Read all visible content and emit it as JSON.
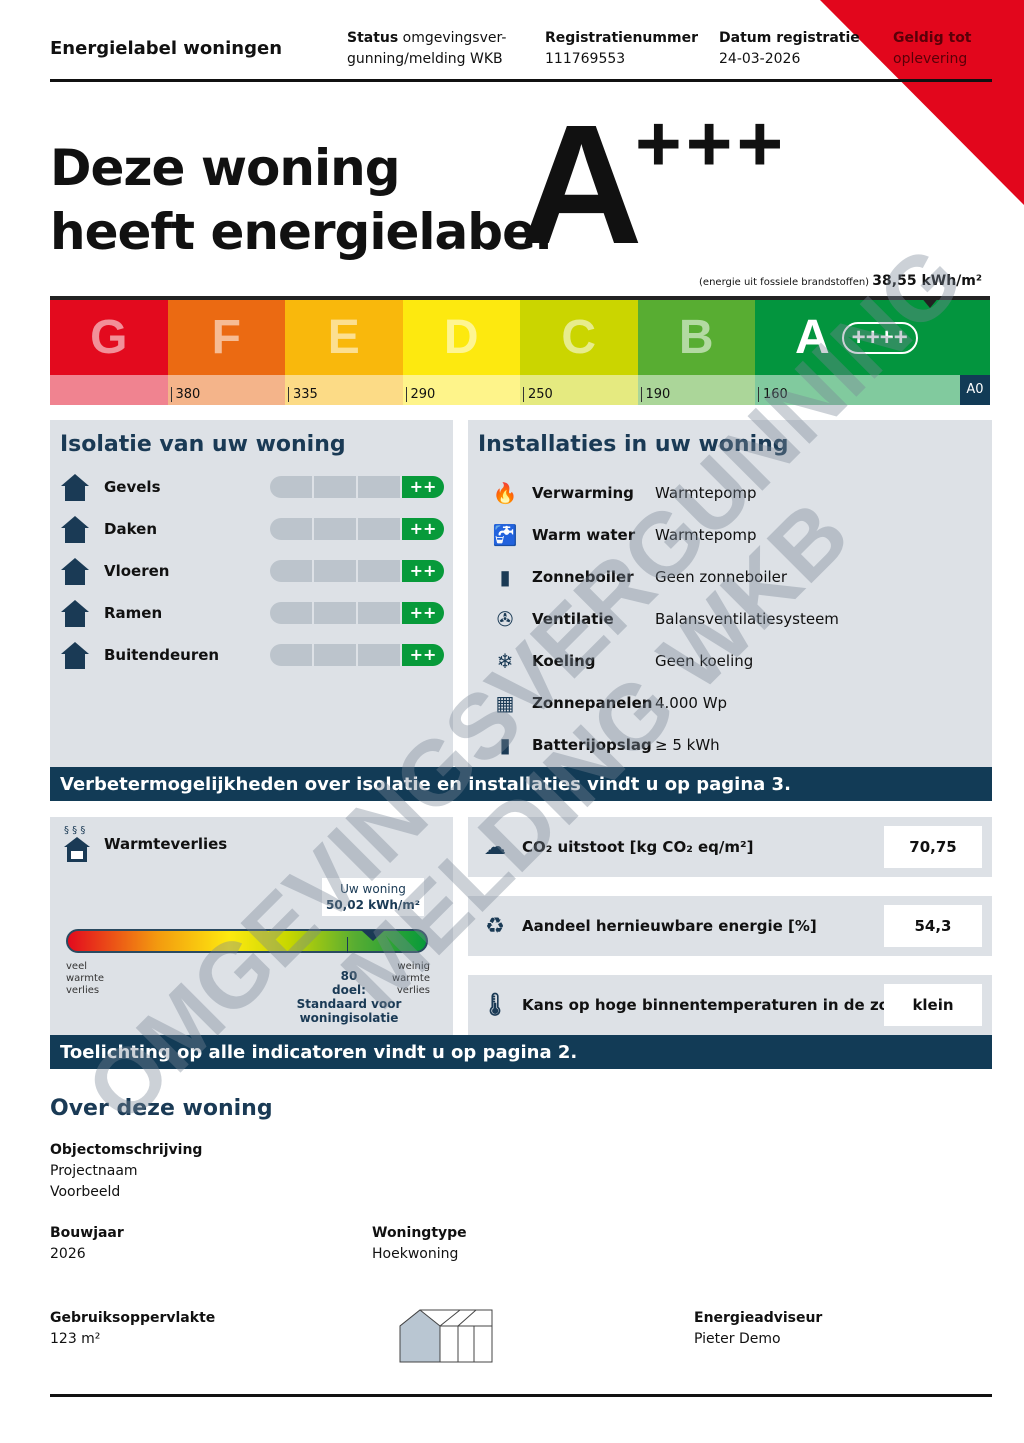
{
  "header": {
    "title": "Energielabel woningen",
    "status_label": "Status",
    "status_value": "omgevingsver-gunning/melding WKB",
    "reg_label": "Registratienummer",
    "reg_value": "111769553",
    "date_label": "Datum registratie",
    "date_value": "24-03-2026",
    "valid_label": "Geldig tot",
    "valid_value": "oplevering"
  },
  "colors": {
    "accent_red": "#e2061c",
    "navy": "#123b56",
    "panel": "#dde1e6"
  },
  "label": {
    "line1": "Deze woning",
    "line2": "heeft energielabel",
    "class": "A",
    "plus": "+++",
    "fossil_note": "(energie uit fossiele brandstoffen)",
    "fossil_value": "38,55 kWh/m²"
  },
  "scale": [
    {
      "letter": "G",
      "top": "#e30a1e",
      "bottom": "#f08390",
      "threshold": ""
    },
    {
      "letter": "F",
      "top": "#eb6a12",
      "bottom": "#f4b48a",
      "threshold": "380"
    },
    {
      "letter": "E",
      "top": "#f9b80c",
      "bottom": "#fcdb86",
      "threshold": "335"
    },
    {
      "letter": "D",
      "top": "#fde90f",
      "bottom": "#fef48a",
      "threshold": "290"
    },
    {
      "letter": "C",
      "top": "#cbd500",
      "bottom": "#e5ea80",
      "threshold": "250"
    },
    {
      "letter": "B",
      "top": "#58ad32",
      "bottom": "#abd699",
      "threshold": "190"
    },
    {
      "letter": "A",
      "top": "#03953e",
      "bottom": "#81ca9e",
      "threshold": "160",
      "badge": "++++",
      "end": "A0"
    }
  ],
  "isolation": {
    "title": "Isolatie van uw woning",
    "items": [
      {
        "label": "Gevels",
        "rating": "++"
      },
      {
        "label": "Daken",
        "rating": "++"
      },
      {
        "label": "Vloeren",
        "rating": "++"
      },
      {
        "label": "Ramen",
        "rating": "++"
      },
      {
        "label": "Buitendeuren",
        "rating": "++"
      }
    ]
  },
  "installations": {
    "title": "Installaties in uw woning",
    "items": [
      {
        "label": "Verwarming",
        "value": "Warmtepomp",
        "icon": "flame-icon"
      },
      {
        "label": "Warm water",
        "value": "Warmtepomp",
        "icon": "tap-icon"
      },
      {
        "label": "Zonneboiler",
        "value": "Geen zonneboiler",
        "icon": "solar-boiler-icon"
      },
      {
        "label": "Ventilatie",
        "value": "Balansventilatiesysteem",
        "icon": "fan-icon"
      },
      {
        "label": "Koeling",
        "value": "Geen koeling",
        "icon": "snowflake-icon"
      },
      {
        "label": "Zonnepanelen",
        "value": "4.000 Wp",
        "icon": "solar-panel-icon"
      },
      {
        "label": "Batterijopslag",
        "value": "≥ 5 kWh",
        "icon": "battery-icon"
      }
    ]
  },
  "banner1": "Verbetermogelijkheden over isolatie en installaties vindt u op pagina 3.",
  "heatloss": {
    "title": "Warmteverlies",
    "your_label": "Uw woning",
    "your_value": "50,02 kWh/m²",
    "left": "veel warmte verlies",
    "right": "weinig warmte verlies",
    "target_value": "80",
    "target_label": "doel:",
    "target_desc": "Standaard voor woningisolatie"
  },
  "indicators": [
    {
      "label": "CO₂ uitstoot [kg CO₂ eq/m²]",
      "value": "70,75",
      "icon": "co2-icon"
    },
    {
      "label": "Aandeel hernieuwbare energie [%]",
      "value": "54,3",
      "icon": "renewable-icon"
    },
    {
      "label": "Kans op hoge binnentemperaturen in de zomer",
      "value": "klein",
      "icon": "thermometer-warning-icon"
    }
  ],
  "banner2": "Toelichting op alle indicatoren vindt u op pagina 2.",
  "about": {
    "title": "Over deze woning",
    "object_label": "Objectomschrijving",
    "object_line1": "Projectnaam",
    "object_line2": "Voorbeeld",
    "year_label": "Bouwjaar",
    "year_value": "2026",
    "type_label": "Woningtype",
    "type_value": "Hoekwoning",
    "area_label": "Gebruiksoppervlakte",
    "area_value": "123 m²",
    "advisor_label": "Energieadviseur",
    "advisor_value": "Pieter Demo"
  },
  "watermark": {
    "line1": "OMGEVINGSVERGUNNING",
    "line2": "MELDING WKB"
  }
}
